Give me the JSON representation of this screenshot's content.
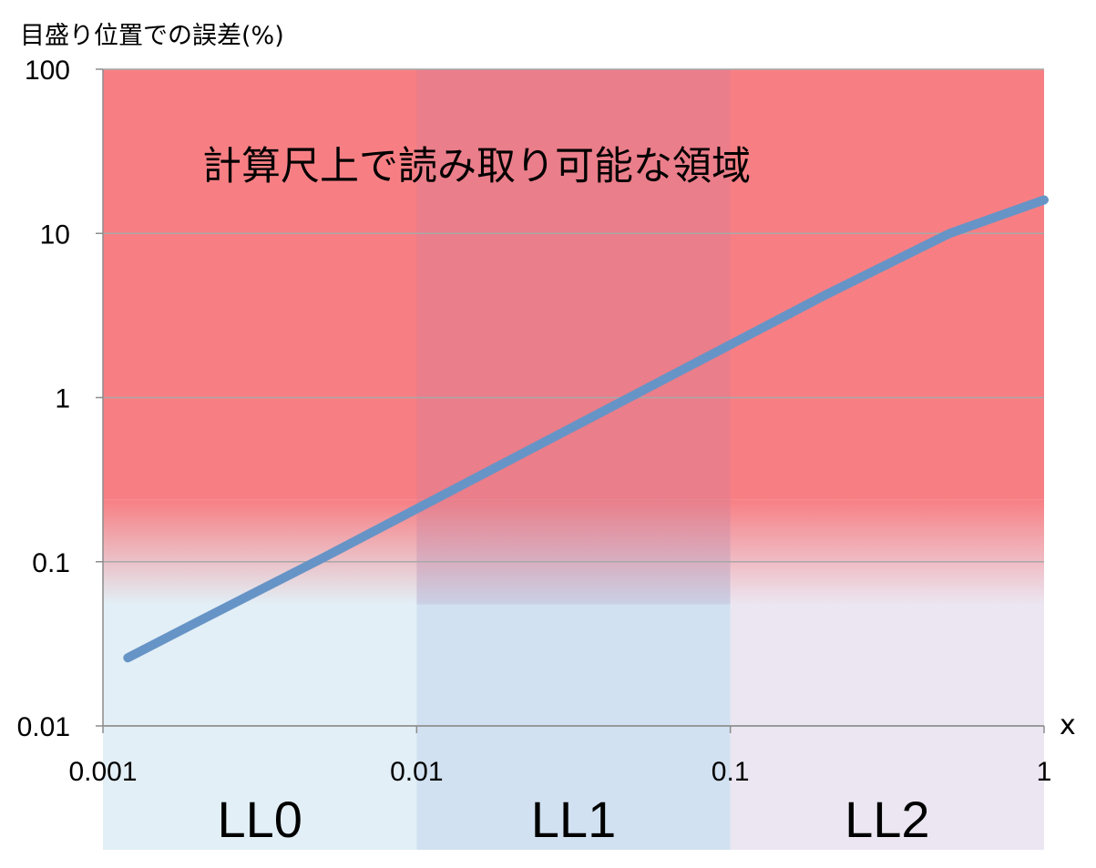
{
  "chart_data": {
    "type": "line",
    "ylabel": "目盛り位置での誤差(%)",
    "xlabel": "x",
    "x_scale": "log",
    "y_scale": "log",
    "xlim": [
      0.001,
      1
    ],
    "ylim": [
      0.01,
      100
    ],
    "x_ticks": [
      "0.001",
      "0.01",
      "0.1",
      "1"
    ],
    "y_ticks": [
      "0.01",
      "0.1",
      "1",
      "10",
      "100"
    ],
    "grid": "horizontal",
    "annotation": "計算尺上で読み取り可能な領域",
    "readable_threshold_y": 0.1,
    "bands": [
      {
        "label": "LL0",
        "x_range": [
          0.001,
          0.01
        ]
      },
      {
        "label": "LL1",
        "x_range": [
          0.01,
          0.1
        ]
      },
      {
        "label": "LL2",
        "x_range": [
          0.1,
          1
        ]
      }
    ],
    "series": [
      {
        "x": [
          0.0012,
          0.002,
          0.005,
          0.01,
          0.02,
          0.05,
          0.1,
          0.2,
          0.5,
          1
        ],
        "y": [
          0.026,
          0.043,
          0.105,
          0.21,
          0.42,
          1.05,
          2.1,
          4.2,
          10,
          16
        ]
      }
    ],
    "colors": {
      "line": "#6794c6",
      "readable_region": "#f77f84",
      "band_ll0": "#e2eff6",
      "band_ll1": "#d1e1f1",
      "band_ll2": "#ebe6f1",
      "band_ll1_overlay": "#a57cae"
    }
  }
}
